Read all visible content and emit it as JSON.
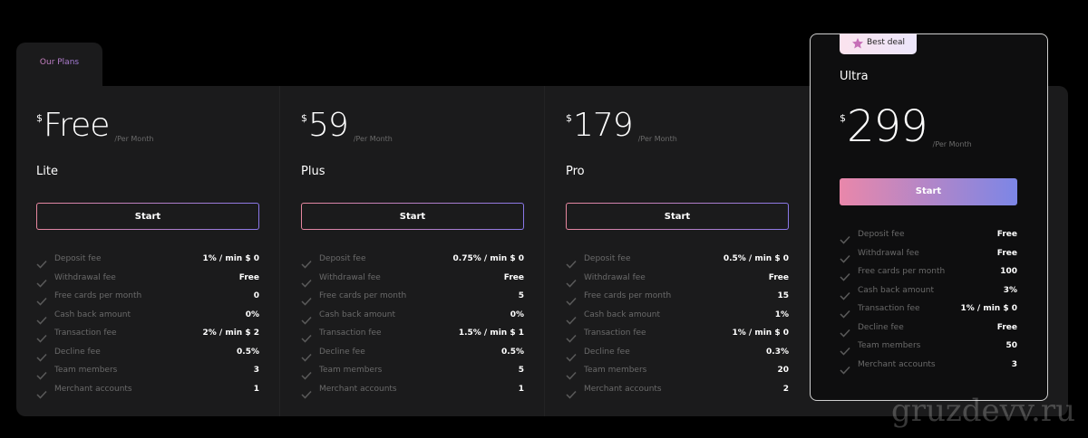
{
  "tab_label": "Our Plans",
  "plans": [
    {
      "currency": "$",
      "price": "Free",
      "period": "/Per Month",
      "name": "Lite",
      "button": "Start",
      "features": [
        [
          "Deposit fee",
          "1% / min $ 0"
        ],
        [
          "Withdrawal fee",
          "Free"
        ],
        [
          "Free cards per month",
          "0"
        ],
        [
          "Cash back amount",
          "0%"
        ],
        [
          "Transaction fee",
          "2% / min $ 2"
        ],
        [
          "Decline fee",
          "0.5%"
        ],
        [
          "Team members",
          "3"
        ],
        [
          "Merchant accounts",
          "1"
        ]
      ]
    },
    {
      "currency": "$",
      "price": "59",
      "period": "/Per Month",
      "name": "Plus",
      "button": "Start",
      "features": [
        [
          "Deposit fee",
          "0.75% / min $ 0"
        ],
        [
          "Withdrawal fee",
          "Free"
        ],
        [
          "Free cards per month",
          "5"
        ],
        [
          "Cash back amount",
          "0%"
        ],
        [
          "Transaction fee",
          "1.5% / min $ 1"
        ],
        [
          "Decline fee",
          "0.5%"
        ],
        [
          "Team members",
          "5"
        ],
        [
          "Merchant accounts",
          "1"
        ]
      ]
    },
    {
      "currency": "$",
      "price": "179",
      "period": "/Per Month",
      "name": "Pro",
      "button": "Start",
      "features": [
        [
          "Deposit fee",
          "0.5% / min $ 0"
        ],
        [
          "Withdrawal fee",
          "Free"
        ],
        [
          "Free cards per month",
          "15"
        ],
        [
          "Cash back amount",
          "1%"
        ],
        [
          "Transaction fee",
          "1% / min $ 0"
        ],
        [
          "Decline fee",
          "0.3%"
        ],
        [
          "Team members",
          "20"
        ],
        [
          "Merchant accounts",
          "2"
        ]
      ]
    },
    {
      "badge": "Best deal",
      "name": "Ultra",
      "currency": "$",
      "price": "299",
      "period": "/Per Month",
      "button": "Start",
      "features": [
        [
          "Deposit fee",
          "Free"
        ],
        [
          "Withdrawal fee",
          "Free"
        ],
        [
          "Free cards per month",
          "100"
        ],
        [
          "Cash back amount",
          "3%"
        ],
        [
          "Transaction fee",
          "1% / min $ 0"
        ],
        [
          "Decline fee",
          "Free"
        ],
        [
          "Team members",
          "50"
        ],
        [
          "Merchant accounts",
          "3"
        ]
      ]
    }
  ],
  "watermark": "gruzdevv.ru"
}
